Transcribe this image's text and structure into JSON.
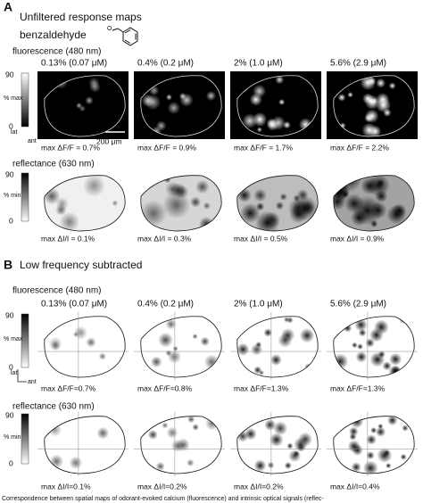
{
  "panel_a": {
    "label": "A",
    "title": "Unfiltered response maps",
    "odorant": "benzaldehyde",
    "oxygen": "O",
    "fluorescence": {
      "title": "fluorescence (480 nm)",
      "concentrations": [
        "0.13% (0.07 μM)",
        "0.4% (0.2 μM)",
        "2% (1.0 μM)",
        "5.6% (2.9 μM)"
      ],
      "scale": {
        "top": "90",
        "unit": "% max",
        "bottom": "0"
      },
      "lat": "lat",
      "ant": "ant",
      "scale_bar": "200 μm",
      "max_labels": [
        "max ΔF/F = 0.7%",
        "max ΔF/F = 0.9%",
        "max ΔF/F = 1.7%",
        "max ΔF/F = 2.2%"
      ]
    },
    "reflectance": {
      "title": "reflectance (630 nm)",
      "scale": {
        "top": "90",
        "unit": "% min",
        "bottom": "0"
      },
      "max_labels": [
        "max ΔI/I = 0.1%",
        "max ΔI/I = 0.3%",
        "max ΔI/I = 0.5%",
        "max ΔI/I = 0.9%"
      ]
    }
  },
  "panel_b": {
    "label": "B",
    "title": "Low frequency subtracted",
    "fluorescence": {
      "title": "fluorescence (480 nm)",
      "concentrations": [
        "0.13% (0.07 μM)",
        "0.4% (0.2 μM)",
        "2% (1.0 μM)",
        "5.6% (2.9 μM)"
      ],
      "scale": {
        "top": "90",
        "unit": "% max",
        "bottom": "0"
      },
      "lat": "lat",
      "ant": "ant",
      "max_labels": [
        "max ΔF/F=0.7%",
        "max ΔF/F=0.8%",
        "max ΔF/F=1.3%",
        "max ΔF/F=1.3%"
      ]
    },
    "reflectance": {
      "title": "reflectance (630 nm)",
      "scale": {
        "top": "90",
        "unit": "% min",
        "bottom": "0"
      },
      "max_labels": [
        "max ΔI/I=0.1%",
        "max ΔI/I=0.2%",
        "max ΔI/I=0.2%",
        "max ΔI/I=0.4%"
      ]
    }
  },
  "caption": "Correspondence between spatial maps of odorant-evoked calcium (fluorescence) and intrinsic optical signals (reflec-"
}
